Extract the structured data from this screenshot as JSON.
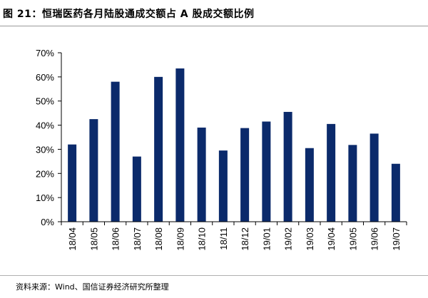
{
  "figure_title": "图 21：恒瑞医药各月陆股通成交额占 A 股成交额比例",
  "source_note": "资料来源：Wind、国信证券经济研究所整理",
  "chart_data": {
    "type": "bar",
    "title": "",
    "xlabel": "",
    "ylabel": "",
    "categories": [
      "18/04",
      "18/05",
      "18/06",
      "18/07",
      "18/08",
      "18/09",
      "18/10",
      "18/11",
      "18/12",
      "19/01",
      "19/02",
      "19/03",
      "19/04",
      "19/05",
      "19/06",
      "19/07"
    ],
    "values": [
      32,
      42.5,
      58,
      27,
      60,
      63.5,
      39,
      29.5,
      38.8,
      41.5,
      45.5,
      30.5,
      40.5,
      31.8,
      36.5,
      24
    ],
    "ylim": [
      0,
      70
    ],
    "y_ticks": [
      "0%",
      "10%",
      "20%",
      "30%",
      "40%",
      "50%",
      "60%",
      "70%"
    ],
    "grid": false,
    "bar_color": "#0b2a6b"
  }
}
